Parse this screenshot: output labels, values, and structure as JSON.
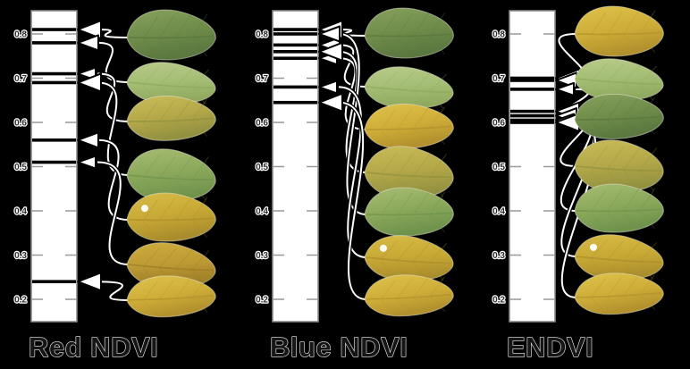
{
  "figure": {
    "background": "#000000",
    "description": "Seven soybean leaves of varying senescence mapped to vegetation-index scales",
    "titles": [
      "Red NDVI",
      "Blue NDVI",
      "ENDVI"
    ]
  },
  "colors": {
    "scale_fill": "#ffffff",
    "scale_border": "#8a8a8a",
    "tick": "#999999",
    "mark": "#000000",
    "arrow_fill": "#ffffff",
    "arrow_stroke": "#000000",
    "title_fill": "#161616",
    "title_halo": "#f0f0f0",
    "tick_label_fill": "#303030",
    "tick_label_halo": "#ffffff"
  },
  "leaf_colors": {
    "dark-green": {
      "light": "#86a05c",
      "base": "#6f8c4a",
      "dark": "#5a7840"
    },
    "light-green": {
      "light": "#b9cc8a",
      "base": "#a4bd74",
      "dark": "#8fa95e"
    },
    "green": {
      "light": "#a6bc72",
      "base": "#8aa85a",
      "dark": "#6f934c"
    },
    "yellow-green": {
      "light": "#c9bc58",
      "base": "#b3a748",
      "dark": "#929140"
    },
    "yellow": {
      "light": "#ddc14a",
      "base": "#cfae38",
      "dark": "#b2912e"
    },
    "yellow-spot": {
      "light": "#d8bc46",
      "base": "#c7a835",
      "dark": "#a98d2c"
    },
    "yellow-brown": {
      "light": "#cfae3e",
      "base": "#bd9a33",
      "dark": "#9c7c28"
    }
  },
  "panels": [
    {
      "id": "red-ndvi",
      "title": "Red NDVI",
      "tick_labels": [
        "0.8",
        "0.7",
        "0.6",
        "0.5",
        "0.4",
        "0.3",
        "0.2"
      ],
      "leaves": [
        {
          "color": "dark-green",
          "value": 0.81
        },
        {
          "color": "light-green",
          "value": 0.78
        },
        {
          "color": "yellow-green",
          "value": 0.71
        },
        {
          "color": "green",
          "value": 0.69
        },
        {
          "color": "yellow-spot",
          "value": 0.56
        },
        {
          "color": "yellow-brown",
          "value": 0.51
        },
        {
          "color": "yellow",
          "value": 0.24
        }
      ]
    },
    {
      "id": "blue-ndvi",
      "title": "Blue NDVI",
      "tick_labels": [
        "0.8",
        "0.7",
        "0.6",
        "0.5",
        "0.4",
        "0.3",
        "0.2"
      ],
      "leaves": [
        {
          "color": "dark-green",
          "value": 0.81
        },
        {
          "color": "light-green",
          "value": 0.775
        },
        {
          "color": "yellow",
          "value": 0.745
        },
        {
          "color": "yellow-green",
          "value": 0.76
        },
        {
          "color": "green",
          "value": 0.8
        },
        {
          "color": "yellow-spot",
          "value": 0.68
        },
        {
          "color": "yellow",
          "value": 0.645
        }
      ]
    },
    {
      "id": "endvi",
      "title": "ENDVI",
      "tick_labels": [
        "0.8",
        "0.7",
        "0.6",
        "0.5",
        "0.4",
        "0.3",
        "0.2"
      ],
      "leaves": [
        {
          "color": "yellow",
          "value": 0.7
        },
        {
          "color": "light-green",
          "value": 0.695
        },
        {
          "color": "dark-green",
          "value": 0.675
        },
        {
          "color": "yellow-green",
          "value": 0.625
        },
        {
          "color": "green",
          "value": 0.615
        },
        {
          "color": "yellow-spot",
          "value": 0.605
        },
        {
          "color": "yellow",
          "value": 0.6
        }
      ]
    }
  ],
  "chart_data": [
    {
      "type": "scale",
      "title": "Red NDVI",
      "axis_range": [
        0.15,
        0.85
      ],
      "tick_labels": [
        0.8,
        0.7,
        0.6,
        0.5,
        0.4,
        0.3,
        0.2
      ],
      "legend_position": "none",
      "grid": false,
      "points": [
        {
          "leaf": "dark-green",
          "value": 0.81
        },
        {
          "leaf": "light-green",
          "value": 0.78
        },
        {
          "leaf": "yellow-green",
          "value": 0.71
        },
        {
          "leaf": "green",
          "value": 0.69
        },
        {
          "leaf": "yellow-spot",
          "value": 0.56
        },
        {
          "leaf": "yellow-brown",
          "value": 0.51
        },
        {
          "leaf": "yellow",
          "value": 0.24
        }
      ]
    },
    {
      "type": "scale",
      "title": "Blue NDVI",
      "axis_range": [
        0.15,
        0.85
      ],
      "tick_labels": [
        0.8,
        0.7,
        0.6,
        0.5,
        0.4,
        0.3,
        0.2
      ],
      "legend_position": "none",
      "grid": false,
      "points": [
        {
          "leaf": "dark-green",
          "value": 0.81
        },
        {
          "leaf": "light-green",
          "value": 0.775
        },
        {
          "leaf": "yellow",
          "value": 0.745
        },
        {
          "leaf": "yellow-green",
          "value": 0.76
        },
        {
          "leaf": "green",
          "value": 0.8
        },
        {
          "leaf": "yellow-spot",
          "value": 0.68
        },
        {
          "leaf": "yellow",
          "value": 0.645
        }
      ]
    },
    {
      "type": "scale",
      "title": "ENDVI",
      "axis_range": [
        0.15,
        0.85
      ],
      "tick_labels": [
        0.8,
        0.7,
        0.6,
        0.5,
        0.4,
        0.3,
        0.2
      ],
      "legend_position": "none",
      "grid": false,
      "points": [
        {
          "leaf": "yellow",
          "value": 0.7
        },
        {
          "leaf": "light-green",
          "value": 0.695
        },
        {
          "leaf": "dark-green",
          "value": 0.675
        },
        {
          "leaf": "yellow-green",
          "value": 0.625
        },
        {
          "leaf": "green",
          "value": 0.615
        },
        {
          "leaf": "yellow-spot",
          "value": 0.605
        },
        {
          "leaf": "yellow",
          "value": 0.6
        }
      ]
    }
  ]
}
